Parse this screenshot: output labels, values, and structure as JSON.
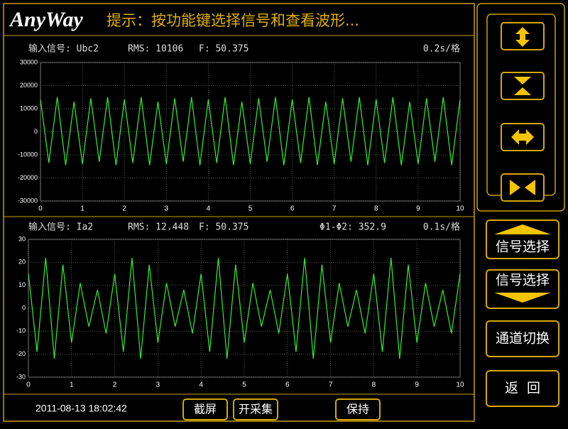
{
  "header": {
    "logo": "AnyWay",
    "title": "提示：按功能键选择信号和查看波形..."
  },
  "chart_data": [
    {
      "type": "line",
      "title": "输入信号: Ubc2",
      "annotations": [
        "RMS: 10106",
        "F: 50.375",
        "0.2s/格"
      ],
      "x": [
        0,
        0.2,
        0.4,
        0.6,
        0.8,
        1,
        1.2,
        1.4,
        1.6,
        1.8,
        2,
        2.2,
        2.4,
        2.6,
        2.8,
        3,
        3.2,
        3.4,
        3.6,
        3.8,
        4,
        4.2,
        4.4,
        4.6,
        4.8,
        5,
        5.2,
        5.4,
        5.6,
        5.8,
        6,
        6.2,
        6.4,
        6.6,
        6.8,
        7,
        7.2,
        7.4,
        7.6,
        7.8,
        8,
        8.2,
        8.4,
        8.6,
        8.8,
        9,
        9.2,
        9.4,
        9.6,
        9.8,
        10
      ],
      "values": [
        14000,
        -13500,
        15000,
        -14500,
        13000,
        -14000,
        14500,
        -13000,
        15000,
        -14500,
        14000,
        -13500,
        15000,
        -14500,
        13000,
        -14000,
        14500,
        -13000,
        15000,
        -14500,
        14000,
        -13500,
        15000,
        -14500,
        13000,
        -14000,
        14500,
        -13000,
        15000,
        -14500,
        14000,
        -13500,
        15000,
        -14500,
        13000,
        -14000,
        14500,
        -13000,
        15000,
        -14500,
        14000,
        -13500,
        15000,
        -14500,
        13000,
        -14000,
        14500,
        -13000,
        15000,
        -14500,
        14000
      ],
      "color": "#33ee33",
      "xlim": [
        0,
        10
      ],
      "xticks": [
        0,
        1,
        2,
        3,
        4,
        5,
        6,
        7,
        8,
        9,
        10
      ],
      "ylim": [
        -30000,
        30000
      ],
      "yticks": [
        -30000,
        -20000,
        -10000,
        0,
        10000,
        20000,
        30000
      ],
      "grid": true
    },
    {
      "type": "line",
      "title": "输入信号: Ia2",
      "annotations": [
        "RMS: 12.448",
        "F: 50.375",
        "Φ1-Φ2: 352.9",
        "0.1s/格"
      ],
      "x": [
        0,
        0.2,
        0.4,
        0.6,
        0.8,
        1,
        1.2,
        1.4,
        1.6,
        1.8,
        2,
        2.2,
        2.4,
        2.6,
        2.8,
        3,
        3.2,
        3.4,
        3.6,
        3.8,
        4,
        4.2,
        4.4,
        4.6,
        4.8,
        5,
        5.2,
        5.4,
        5.6,
        5.8,
        6,
        6.2,
        6.4,
        6.6,
        6.8,
        7,
        7.2,
        7.4,
        7.6,
        7.8,
        8,
        8.2,
        8.4,
        8.6,
        8.8,
        9,
        9.2,
        9.4,
        9.6,
        9.8,
        10
      ],
      "values": [
        15,
        -19,
        22,
        -22,
        19,
        -15,
        11,
        -8,
        8,
        -11,
        15,
        -19,
        22,
        -22,
        19,
        -15,
        11,
        -8,
        8,
        -11,
        15,
        -19,
        22,
        -22,
        19,
        -15,
        11,
        -8,
        8,
        -11,
        15,
        -19,
        22,
        -22,
        19,
        -15,
        11,
        -8,
        8,
        -11,
        15,
        -19,
        22,
        -22,
        19,
        -15,
        11,
        -8,
        8,
        -11,
        15
      ],
      "color": "#33ee33",
      "xlim": [
        0,
        10
      ],
      "xticks": [
        0,
        1,
        2,
        3,
        4,
        5,
        6,
        7,
        8,
        9,
        10
      ],
      "ylim": [
        -30,
        30
      ],
      "yticks": [
        -30,
        -20,
        -10,
        0,
        10,
        20,
        30
      ],
      "grid": true
    }
  ],
  "footer": {
    "timestamp": "2011-08-13 18:02:42",
    "buttons": [
      "截屏",
      "开采集",
      "保持"
    ]
  },
  "sidebar": {
    "buttons": [
      "信号选择",
      "信号选择",
      "通道切换",
      "返  回"
    ]
  }
}
